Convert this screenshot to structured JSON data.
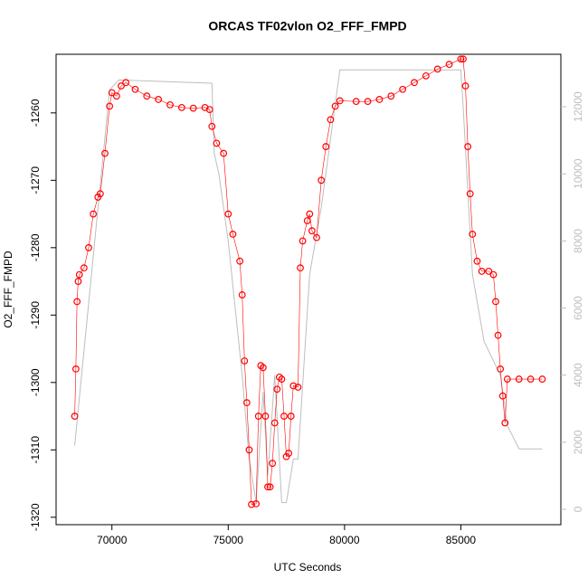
{
  "chart_data": {
    "type": "scatter",
    "title": "ORCAS TF02vlon O2_FFF_FMPD",
    "x_label": "UTC Seconds",
    "y_label": "O2_FFF_FMPD",
    "xlim": [
      67600,
      89300
    ],
    "xticks": [
      70000,
      75000,
      80000,
      85000
    ],
    "ylim": [
      -1321.1,
      -1251.3
    ],
    "yticks": [
      -1320,
      -1310,
      -1300,
      -1290,
      -1280,
      -1270,
      -1260
    ],
    "y2lim": [
      -458,
      13564
    ],
    "y2ticks": [
      0,
      2000,
      4000,
      6000,
      8000,
      10000,
      12000
    ],
    "y2_color": "#bebebe",
    "series": [
      {
        "color": "#bebebe",
        "mode": "line",
        "axis": "y2",
        "x": [
          68400,
          69900,
          70300,
          74300,
          74400,
          74600,
          75000,
          75600,
          75900,
          76200,
          76500,
          76700,
          77000,
          77300,
          77500,
          77800,
          78000,
          78500,
          79000,
          79800,
          85000,
          85100,
          85500,
          86000,
          86700,
          87000,
          87500,
          88500
        ],
        "values": [
          1900,
          12500,
          12800,
          12700,
          10600,
          10000,
          8000,
          4000,
          1500,
          200,
          3500,
          1000,
          4000,
          200,
          200,
          1500,
          1500,
          7000,
          9000,
          13100,
          13100,
          12000,
          7000,
          5000,
          4000,
          2500,
          1800,
          1800
        ]
      },
      {
        "color": "#ff0000",
        "mode": "points",
        "axis": "y",
        "x": [
          68400,
          68450,
          68500,
          68550,
          68600,
          68800,
          69000,
          69200,
          69400,
          69500,
          69700,
          69900,
          70000,
          70200,
          70400,
          70600,
          71000,
          71500,
          72000,
          72500,
          73000,
          73500,
          74000,
          74200,
          74300,
          74500,
          74800,
          75000,
          75200,
          75500,
          75600,
          75700,
          75800,
          75900,
          76000,
          76200,
          76300,
          76400,
          76500,
          76600,
          76700,
          76800,
          76900,
          77000,
          77100,
          77200,
          77300,
          77400,
          77500,
          77600,
          77700,
          77800,
          78000,
          78100,
          78200,
          78400,
          78500,
          78600,
          78800,
          79000,
          79200,
          79400,
          79600,
          79800,
          80500,
          81000,
          81500,
          82000,
          82500,
          83000,
          83500,
          84000,
          84500,
          85000,
          85100,
          85200,
          85300,
          85400,
          85500,
          85700,
          85900,
          86200,
          86400,
          86500,
          86600,
          86700,
          86800,
          86900,
          87000,
          87500,
          88000,
          88500
        ],
        "values": [
          -1305,
          -1298,
          -1288,
          -1285,
          -1284,
          -1283,
          -1280,
          -1275,
          -1272.5,
          -1272,
          -1266,
          -1259,
          -1257,
          -1257.5,
          -1256,
          -1255.5,
          -1256.5,
          -1257.5,
          -1258,
          -1258.8,
          -1259.2,
          -1259.3,
          -1259.2,
          -1259.5,
          -1262,
          -1264.5,
          -1266,
          -1275,
          -1278,
          -1282,
          -1287,
          -1296.8,
          -1303,
          -1310,
          -1318.1,
          -1318,
          -1305,
          -1297.5,
          -1297.8,
          -1305,
          -1315.5,
          -1315.5,
          -1312,
          -1306,
          -1301,
          -1299.2,
          -1299.5,
          -1305,
          -1311,
          -1310.5,
          -1305,
          -1300.5,
          -1300.7,
          -1283,
          -1279,
          -1276,
          -1275,
          -1277.5,
          -1278.5,
          -1270,
          -1265,
          -1261,
          -1259,
          -1258.2,
          -1258.3,
          -1258.3,
          -1258,
          -1257.5,
          -1256.5,
          -1255.5,
          -1254.5,
          -1253.5,
          -1252.8,
          -1252,
          -1252,
          -1256,
          -1265,
          -1272,
          -1278,
          -1282,
          -1283.5,
          -1283.5,
          -1284,
          -1288,
          -1293,
          -1298,
          -1302,
          -1306,
          -1299.5,
          -1299.5,
          -1299.5,
          -1299.5
        ]
      }
    ]
  }
}
